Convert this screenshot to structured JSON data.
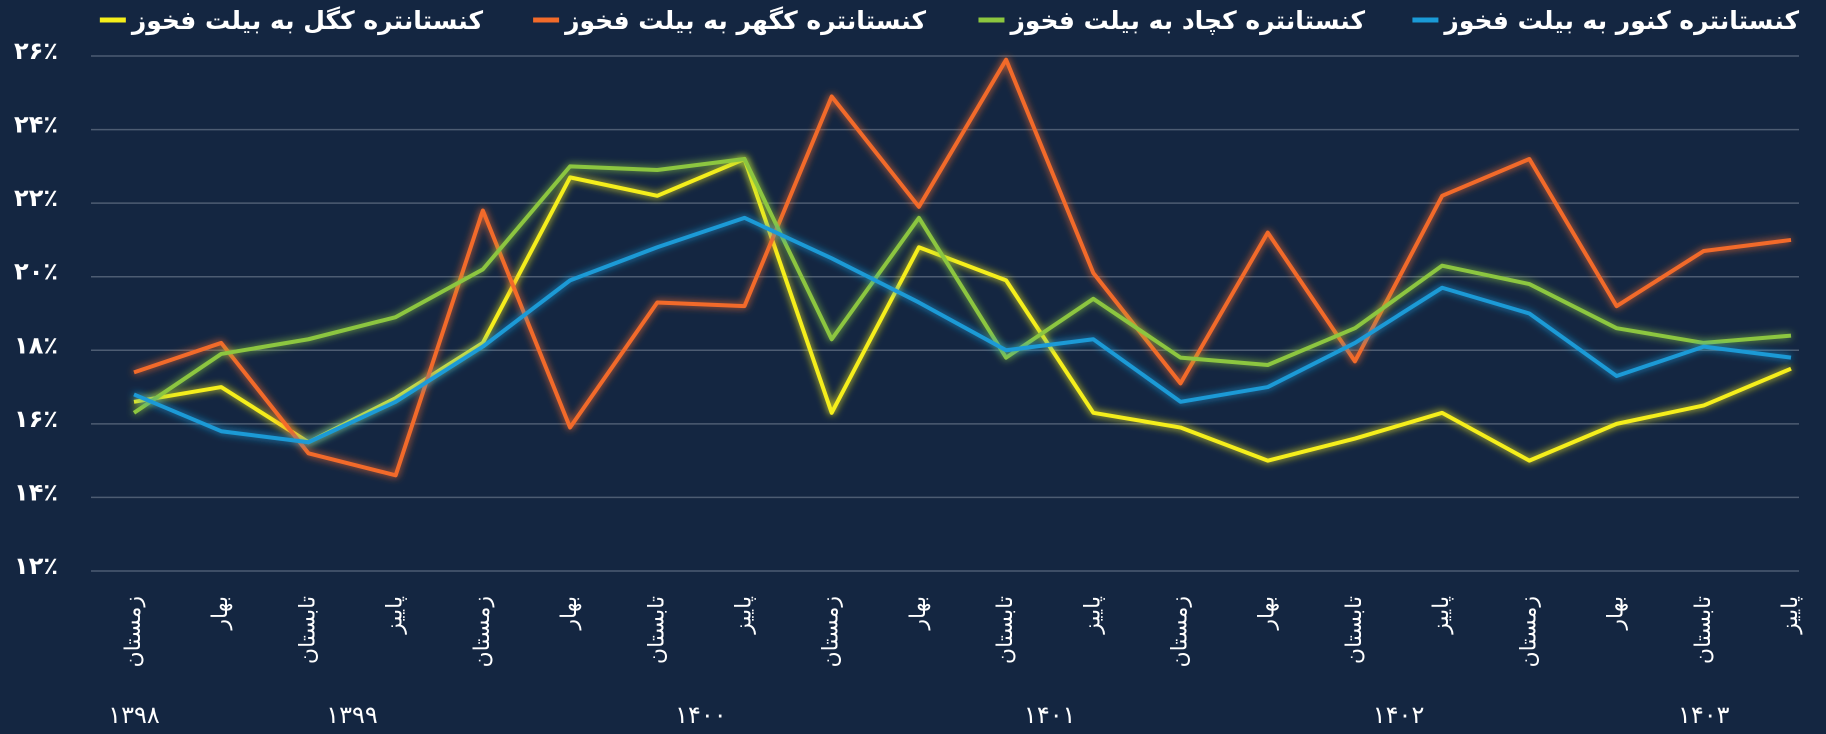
{
  "chart_data": {
    "type": "line",
    "categories": [
      "زمستان",
      "بهار",
      "تابستان",
      "پاییز",
      "زمستان",
      "بهار",
      "تابستان",
      "پاییز",
      "زمستان",
      "بهار",
      "تابستان",
      "پاییز",
      "زمستان",
      "بهار",
      "تابستان",
      "پاییز",
      "زمستان",
      "بهار",
      "تابستان",
      "پاییز"
    ],
    "year_labels": [
      "۱۳۹۸",
      "۱۳۹۹",
      "۱۴۰۰",
      "۱۴۰۱",
      "۱۴۰۲",
      "۱۴۰۳"
    ],
    "series": [
      {
        "name": "کنستانتره کنور به بیلت فخوز",
        "color": "#1a9ad6",
        "values": [
          16.8,
          15.8,
          15.5,
          16.6,
          18.1,
          19.9,
          20.8,
          21.6,
          20.5,
          19.3,
          18.0,
          18.3,
          16.6,
          17.0,
          18.2,
          19.7,
          19.0,
          17.3,
          18.1,
          17.8
        ]
      },
      {
        "name": "کنستانتره کچاد به بیلت فخوز",
        "color": "#8cc63f",
        "values": [
          16.3,
          17.9,
          18.3,
          18.9,
          20.2,
          23.0,
          22.9,
          23.2,
          18.3,
          21.6,
          17.8,
          19.4,
          17.8,
          17.6,
          18.6,
          20.3,
          19.8,
          18.6,
          18.2,
          18.4
        ]
      },
      {
        "name": "کنستانتره کگهر به بیلت فخوز",
        "color": "#f26b2a",
        "values": [
          17.4,
          18.2,
          15.2,
          14.6,
          21.8,
          15.9,
          19.3,
          19.2,
          24.9,
          21.9,
          25.9,
          20.1,
          17.1,
          21.2,
          17.7,
          22.2,
          23.2,
          19.2,
          20.7,
          21.0
        ]
      },
      {
        "name": "کنستانتره کگل به بیلت فخوز",
        "color": "#f5ee1a",
        "values": [
          16.6,
          17.0,
          15.5,
          16.7,
          18.2,
          22.7,
          22.2,
          23.2,
          16.3,
          20.8,
          19.9,
          16.3,
          15.9,
          15.0,
          15.6,
          16.3,
          15.0,
          16.0,
          16.5,
          17.5
        ]
      }
    ],
    "ylim": [
      12,
      26
    ],
    "yticks": [
      {
        "value": 12,
        "label": "۱۲٪"
      },
      {
        "value": 14,
        "label": "۱۴٪"
      },
      {
        "value": 16,
        "label": "۱۶٪"
      },
      {
        "value": 18,
        "label": "۱۸٪"
      },
      {
        "value": 20,
        "label": "۲۰٪"
      },
      {
        "value": 22,
        "label": "۲۲٪"
      },
      {
        "value": 24,
        "label": "۲۴٪"
      },
      {
        "value": 26,
        "label": "۲۶٪"
      }
    ],
    "grid": true
  }
}
